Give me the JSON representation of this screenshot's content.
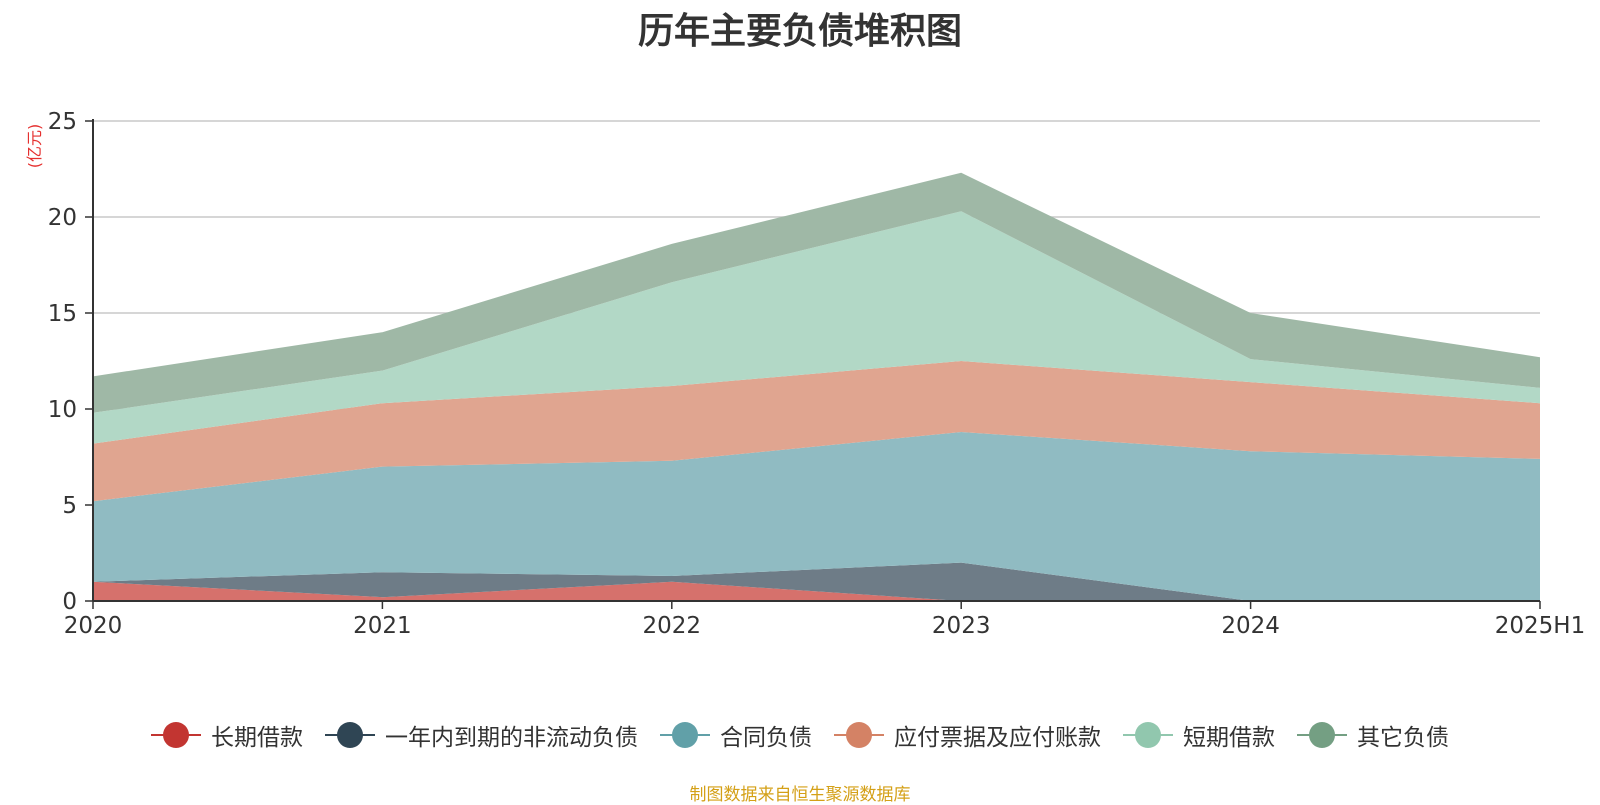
{
  "chart_data": {
    "type": "area",
    "stacked": true,
    "title": "历年主要负债堆积图",
    "unit_label": "(亿元)",
    "categories": [
      "2020",
      "2021",
      "2022",
      "2023",
      "2024",
      "2025H1"
    ],
    "ylim": [
      0,
      25
    ],
    "yticks": [
      0,
      5,
      10,
      15,
      20,
      25
    ],
    "grid": true,
    "legend_position": "bottom",
    "series": [
      {
        "name": "长期借款",
        "color": "#c23531",
        "fill": "#d6716c",
        "values": [
          1.0,
          0.2,
          1.0,
          0.0,
          0.0,
          0.0
        ]
      },
      {
        "name": "一年内到期的非流动负债",
        "color": "#2f4554",
        "fill": "#6e7c87",
        "values": [
          0.0,
          1.3,
          0.3,
          2.0,
          0.0,
          0.0
        ]
      },
      {
        "name": "合同负债",
        "color": "#61a0a8",
        "fill": "#90bbc2",
        "values": [
          4.2,
          5.5,
          6.0,
          6.8,
          7.8,
          7.4
        ]
      },
      {
        "name": "应付票据及应付账款",
        "color": "#d48265",
        "fill": "#e0a590",
        "values": [
          3.0,
          3.3,
          3.9,
          3.7,
          3.6,
          2.9
        ]
      },
      {
        "name": "短期借款",
        "color": "#91c7ae",
        "fill": "#b2d8c6",
        "values": [
          1.6,
          1.7,
          5.4,
          7.8,
          1.2,
          0.8
        ]
      },
      {
        "name": "其它负债",
        "color": "#749f83",
        "fill": "#9fb8a6",
        "values": [
          1.9,
          2.0,
          2.0,
          2.0,
          2.4,
          1.6
        ]
      }
    ]
  },
  "source_note": "制图数据来自恒生聚源数据库"
}
